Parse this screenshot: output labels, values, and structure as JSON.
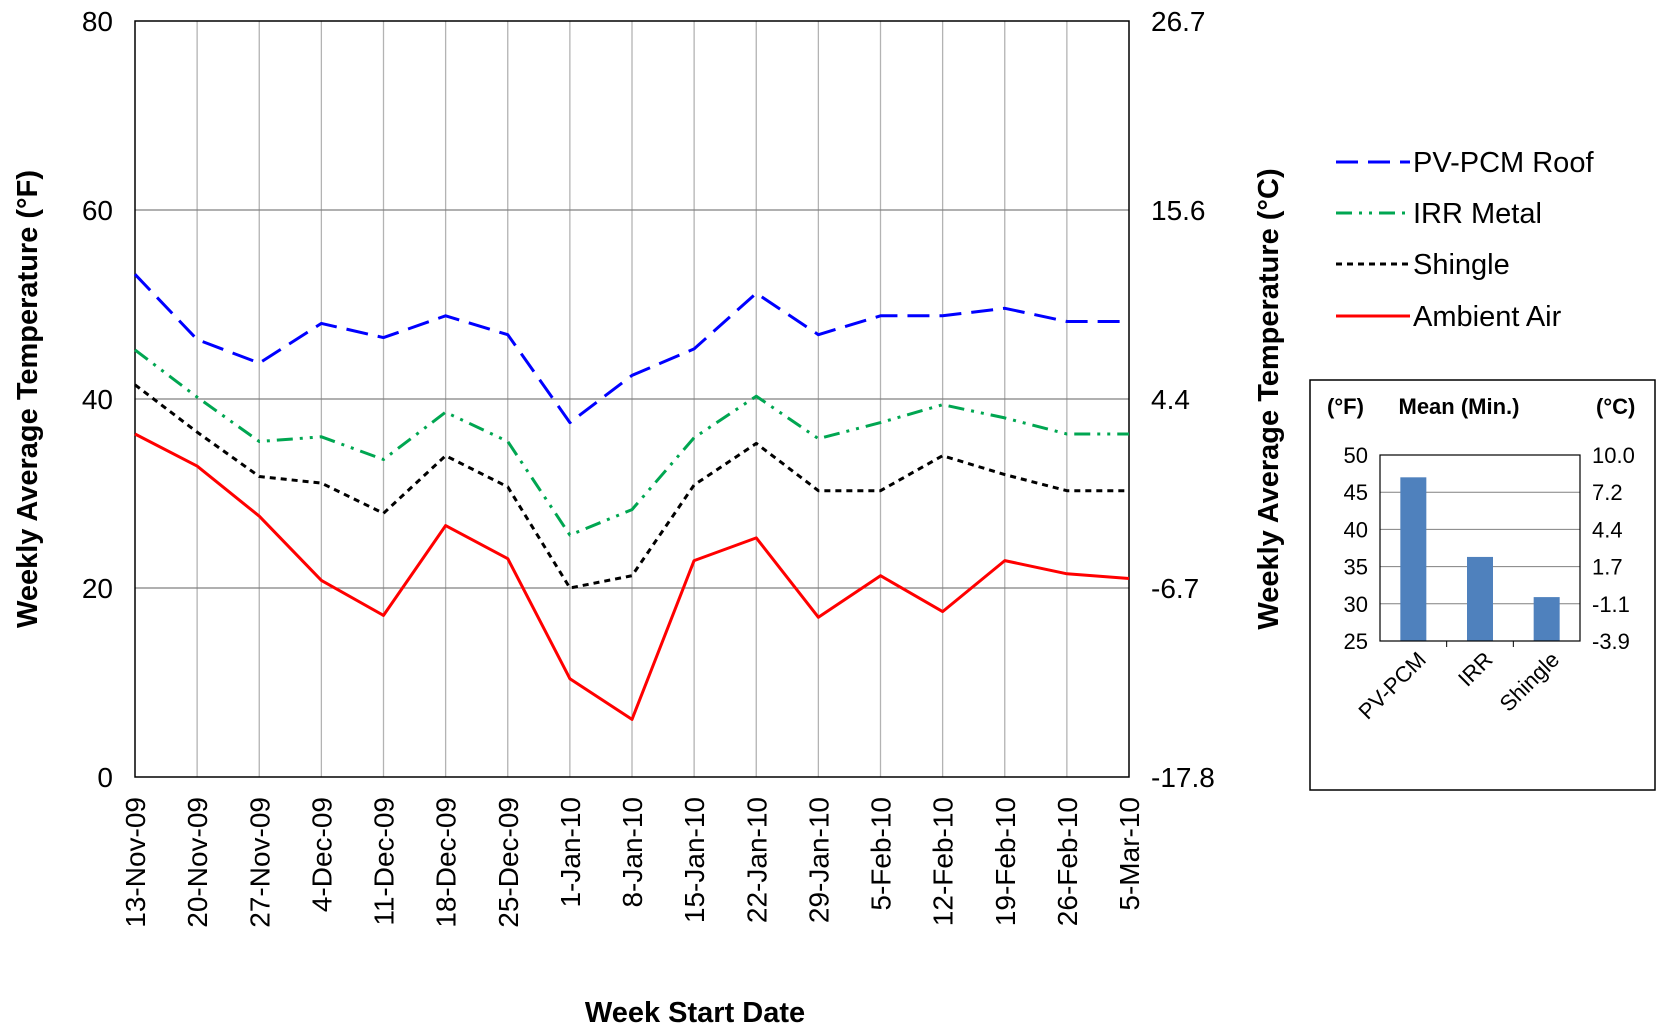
{
  "chart_data": [
    {
      "type": "line",
      "xlabel": "Week Start Date",
      "ylabel_left": "Weekly Average Temperature (°F)",
      "ylabel_right": "Weekly Average Temperature (°C)",
      "ylim": [
        0,
        80
      ],
      "yticks_left": [
        "0",
        "20",
        "40",
        "60",
        "80"
      ],
      "yticks_right": [
        "-17.8",
        "-6.7",
        "4.4",
        "15.6",
        "26.7"
      ],
      "grid": true,
      "legend_position": "right",
      "categories": [
        "13-Nov-09",
        "20-Nov-09",
        "27-Nov-09",
        "4-Dec-09",
        "11-Dec-09",
        "18-Dec-09",
        "25-Dec-09",
        "1-Jan-10",
        "8-Jan-10",
        "15-Jan-10",
        "22-Jan-10",
        "29-Jan-10",
        "5-Feb-10",
        "12-Feb-10",
        "19-Feb-10",
        "26-Feb-10",
        "5-Mar-10"
      ],
      "series": [
        {
          "name": "PV-PCM Roof",
          "color": "#0000FF",
          "dash": "dashed",
          "values": [
            53.2,
            46.3,
            43.8,
            48.0,
            46.5,
            48.8,
            46.8,
            37.5,
            42.5,
            45.3,
            51.2,
            46.8,
            48.8,
            48.8,
            49.6,
            48.2,
            48.2
          ]
        },
        {
          "name": "IRR Metal",
          "color": "#00A651",
          "dash": "dash-dot-dot",
          "values": [
            45.2,
            40.2,
            35.5,
            36.0,
            33.6,
            38.6,
            35.5,
            25.6,
            28.3,
            35.9,
            40.3,
            35.8,
            37.5,
            39.4,
            38.0,
            36.3,
            36.3
          ]
        },
        {
          "name": "Shingle",
          "color": "#000000",
          "dash": "dotted",
          "values": [
            41.5,
            36.5,
            31.8,
            31.1,
            27.9,
            34.0,
            30.7,
            20.0,
            21.3,
            30.9,
            35.3,
            30.3,
            30.3,
            34.0,
            32.0,
            30.3,
            30.3
          ]
        },
        {
          "name": "Ambient Air",
          "color": "#FF0000",
          "dash": "solid",
          "values": [
            36.3,
            32.9,
            27.6,
            20.8,
            17.1,
            26.6,
            23.1,
            10.4,
            6.1,
            22.9,
            25.3,
            16.9,
            21.3,
            17.5,
            22.9,
            21.5,
            21.0
          ]
        }
      ]
    },
    {
      "type": "bar",
      "title": "Mean (Min.)",
      "ylabel_left": "(°F)",
      "ylabel_right": "(°C)",
      "ylim": [
        25,
        50
      ],
      "yticks_left": [
        "25",
        "30",
        "35",
        "40",
        "45",
        "50"
      ],
      "yticks_right": [
        "-3.9",
        "-1.1",
        "1.7",
        "4.4",
        "7.2",
        "10.0"
      ],
      "grid": true,
      "categories": [
        "PV-PCM",
        "IRR",
        "Shingle"
      ],
      "values": [
        47.0,
        36.3,
        30.9
      ],
      "color": "#4F81BD"
    }
  ]
}
